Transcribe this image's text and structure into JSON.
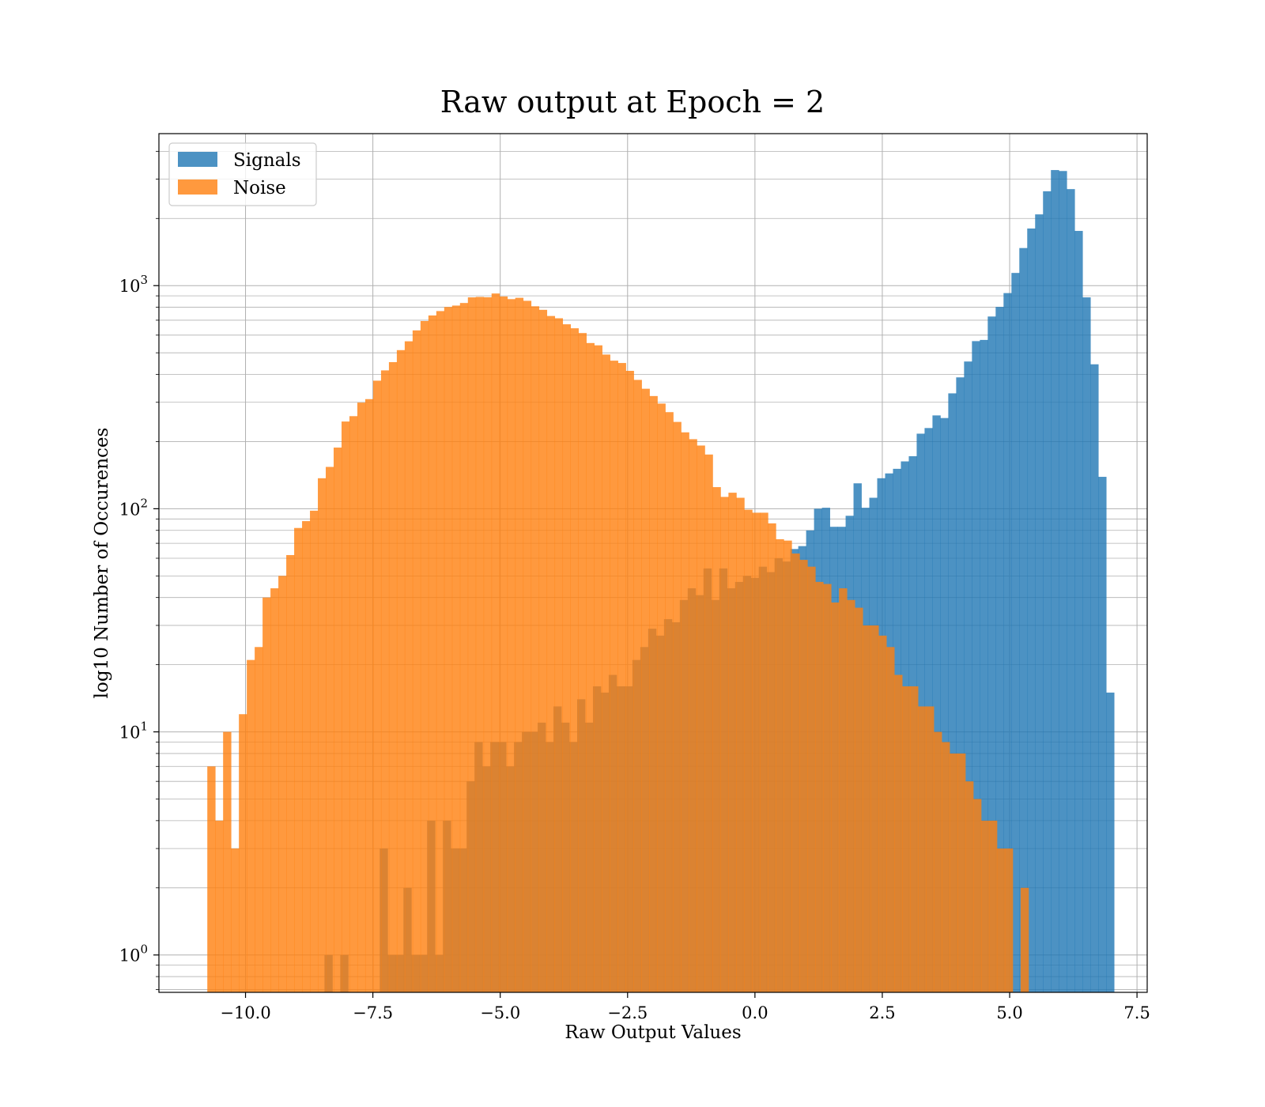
{
  "chart_data": {
    "type": "histogram",
    "title": "Raw output at Epoch = 2",
    "xlabel": "Raw Output Values",
    "ylabel": "log10 Number of Occurences",
    "yscale": "log",
    "xlim": [
      -11.7,
      7.7
    ],
    "ylim": [
      0.68,
      4800
    ],
    "xticks": [
      -10.0,
      -7.5,
      -5.0,
      -2.5,
      0.0,
      2.5,
      5.0,
      7.5
    ],
    "xtick_labels": [
      "−10.0",
      "−7.5",
      "−5.0",
      "−2.5",
      "0.0",
      "2.5",
      "5.0",
      "7.5"
    ],
    "yticks": [
      1,
      10,
      100,
      1000
    ],
    "ytick_labels": [
      {
        "base": "10",
        "exp": "0"
      },
      {
        "base": "10",
        "exp": "1"
      },
      {
        "base": "10",
        "exp": "2"
      },
      {
        "base": "10",
        "exp": "3"
      }
    ],
    "grid": true,
    "legend_position": "upper left",
    "bin_width": 0.155,
    "series": [
      {
        "name": "Signals",
        "color": "#1f77b4",
        "opacity": 0.8,
        "bin_start": -8.45,
        "counts": [
          1,
          0,
          1,
          0,
          0,
          0,
          0,
          3,
          1,
          1,
          2,
          1,
          1,
          4,
          1,
          4,
          3,
          3,
          6,
          9,
          7,
          9,
          9,
          7,
          9,
          10,
          10,
          11,
          9,
          13,
          11,
          9,
          14,
          11,
          16,
          15,
          18,
          16,
          16,
          21,
          24,
          29,
          27,
          32,
          31,
          39,
          44,
          41,
          54,
          39,
          54,
          44,
          47,
          50,
          49,
          55,
          52,
          60,
          58,
          66,
          68,
          80,
          100,
          101,
          83,
          83,
          93,
          130,
          101,
          112,
          137,
          144,
          151,
          163,
          172,
          217,
          230,
          262,
          255,
          329,
          388,
          457,
          564,
          571,
          727,
          803,
          926,
          1140,
          1474,
          1803,
          2086,
          2648,
          3296,
          3264,
          2708,
          1759,
          886,
          444,
          139,
          15
        ]
      },
      {
        "name": "Noise",
        "color": "#ff7f0e",
        "opacity": 0.8,
        "bin_start": -10.75,
        "counts": [
          7,
          4,
          10,
          3,
          12,
          21,
          24,
          40,
          44,
          50,
          62,
          82,
          88,
          98,
          137,
          154,
          188,
          246,
          260,
          299,
          310,
          375,
          417,
          454,
          514,
          563,
          630,
          694,
          735,
          769,
          802,
          814,
          836,
          886,
          890,
          887,
          922,
          894,
          870,
          882,
          855,
          808,
          779,
          731,
          714,
          671,
          644,
          613,
          553,
          540,
          491,
          461,
          450,
          415,
          378,
          345,
          320,
          296,
          271,
          245,
          220,
          205,
          192,
          175,
          125,
          113,
          118,
          112,
          99,
          96,
          96,
          86,
          73,
          72,
          63,
          59,
          55,
          47,
          46,
          38,
          44,
          39,
          36,
          30,
          30,
          27,
          24,
          18,
          16,
          16,
          13,
          13,
          10,
          9,
          8,
          8,
          6,
          5,
          4,
          4,
          3,
          3,
          0,
          2
        ]
      }
    ]
  }
}
